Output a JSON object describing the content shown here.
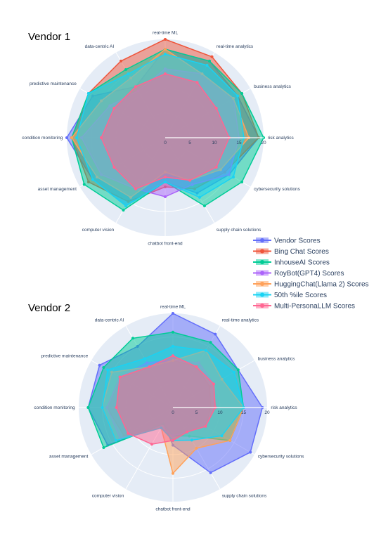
{
  "chart_data": [
    {
      "type": "radar",
      "title": "Vendor 1",
      "radial_range": [
        0,
        20
      ],
      "radial_ticks": [
        "0",
        "5",
        "10",
        "15",
        "20"
      ],
      "categories": [
        "real-time ML",
        "real-time analytics",
        "business analytics",
        "risk analytics",
        "cybersecurity solutions",
        "supply chain solutions",
        "chatbot front-end",
        "computer vision",
        "asset management",
        "condition monitoring",
        "predictive maintenance",
        "data-centric AI"
      ],
      "series": [
        {
          "name": "Vendor Scores",
          "values": [
            18,
            18,
            17,
            19,
            15,
            13,
            9,
            16,
            17,
            20,
            17,
            12
          ]
        },
        {
          "name": "Bing Chat Scores",
          "values": [
            20,
            19,
            18,
            19,
            14,
            12,
            10,
            15,
            18,
            19,
            18,
            18
          ]
        },
        {
          "name": "InhouseAI Scores",
          "values": [
            18,
            18,
            18,
            20,
            18,
            16,
            9,
            17,
            19,
            19,
            18,
            16
          ]
        },
        {
          "name": "RoyBot(GPT4) Scores",
          "values": [
            14,
            15,
            16,
            15,
            15,
            11,
            12,
            12,
            15,
            17,
            13,
            11
          ]
        },
        {
          "name": "HuggingChat(Llama 2) Scores",
          "values": [
            18,
            15,
            16,
            17,
            13,
            10,
            7,
            14,
            16,
            19,
            15,
            14
          ]
        },
        {
          "name": "50th %ile Scores",
          "values": [
            17,
            17,
            17,
            16,
            16,
            14,
            9,
            16,
            17,
            18,
            18,
            15
          ]
        },
        {
          "name": "Multi-PersonaLLM Scores",
          "values": [
            13,
            13,
            12,
            13,
            12,
            10,
            8,
            12,
            12,
            13,
            12,
            12
          ]
        }
      ]
    },
    {
      "type": "radar",
      "title": "Vendor 2",
      "radial_range": [
        0,
        20
      ],
      "radial_ticks": [
        "0",
        "5",
        "10",
        "15",
        "20"
      ],
      "categories": [
        "real-time ML",
        "real-time analytics",
        "business analytics",
        "risk analytics",
        "cybersecurity solutions",
        "supply chain solutions",
        "chatbot front-end",
        "computer vision",
        "asset management",
        "condition monitoring",
        "predictive maintenance",
        "data-centric AI"
      ],
      "series": [
        {
          "name": "Vendor Scores",
          "values": [
            20,
            18,
            16,
            19,
            19,
            16,
            8,
            4,
            16,
            18,
            18,
            15
          ]
        },
        {
          "name": "Bing Chat Scores",
          "values": [
            10,
            10,
            9,
            8,
            8,
            6,
            7,
            5,
            12,
            14,
            13,
            10
          ]
        },
        {
          "name": "InhouseAI Scores",
          "values": [
            16,
            16,
            16,
            15,
            14,
            7,
            6,
            4,
            17,
            18,
            17,
            17
          ]
        },
        {
          "name": "RoyBot(GPT4) Scores",
          "values": [
            10,
            11,
            10,
            9,
            8,
            6,
            6,
            5,
            13,
            14,
            13,
            11
          ]
        },
        {
          "name": "HuggingChat(Llama 2) Scores",
          "values": [
            10,
            14,
            12,
            15,
            14,
            10,
            14,
            5,
            14,
            15,
            15,
            10
          ]
        },
        {
          "name": "50th %ile Scores",
          "values": [
            13,
            14,
            15,
            15,
            12,
            8,
            7,
            5,
            14,
            15,
            16,
            12
          ]
        },
        {
          "name": "Multi-PersonaLLM Scores",
          "values": [
            11,
            10,
            10,
            9,
            8,
            6,
            7,
            9,
            11,
            12,
            13,
            10
          ]
        }
      ]
    }
  ],
  "legend": {
    "placement": "between charts, right",
    "items": [
      "Vendor Scores",
      "Bing Chat Scores",
      "InhouseAI Scores",
      "RoyBot(GPT4) Scores",
      "HuggingChat(Llama 2) Scores",
      "50th %ile Scores",
      "Multi-PersonaLLM Scores"
    ]
  },
  "colors": {
    "series": [
      "#636efa",
      "#ef553b",
      "#00cc96",
      "#ab63fa",
      "#ffa15a",
      "#19d3f3",
      "#ff6692"
    ],
    "polar_background": "#e5ecf6",
    "grid": "#ffffff"
  }
}
